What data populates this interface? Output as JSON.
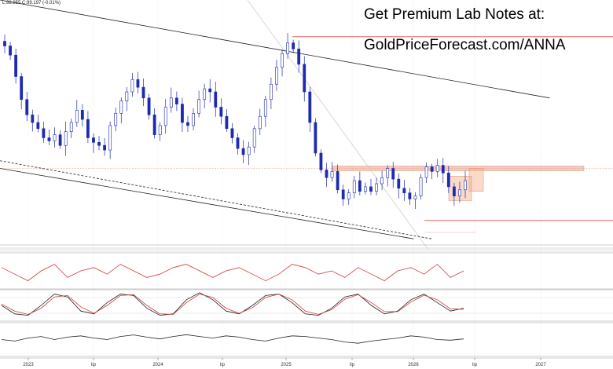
{
  "header": {
    "ohlc_text": "L:98.855  C:99.197  (-0.01%)"
  },
  "promo": {
    "line1": "Get Premium Lab Notes at:",
    "line2": "GoldPriceForecast.com/ANNA"
  },
  "chart_data": {
    "type": "candlestick",
    "x_ticks": [
      "2023",
      "lip",
      "2024",
      "lip",
      "2025",
      "lip",
      "2026",
      "lip",
      "2027"
    ],
    "price": {
      "ylim": [
        95,
        111
      ],
      "weekly_close_approx": [
        108.0,
        107.4,
        106.0,
        104.5,
        103.5,
        103.0,
        102.6,
        102.0,
        101.8,
        102.2,
        101.5,
        102.4,
        103.0,
        103.8,
        103.2,
        102.0,
        101.7,
        101.5,
        101.2,
        102.8,
        103.6,
        104.4,
        105.0,
        105.8,
        105.3,
        104.6,
        103.5,
        102.2,
        102.8,
        104.0,
        104.6,
        104.2,
        103.0,
        102.8,
        103.6,
        104.5,
        105.2,
        105.0,
        104.0,
        103.4,
        102.6,
        102.0,
        101.3,
        100.9,
        101.4,
        102.6,
        103.4,
        104.5,
        105.5,
        106.6,
        107.5,
        108.2,
        107.8,
        106.8,
        105.0,
        103.0,
        101.0,
        99.9,
        99.4,
        99.8,
        98.6,
        98.0,
        98.4,
        99.2,
        98.5,
        98.8,
        98.5,
        99.0,
        99.4,
        100.0,
        99.3,
        98.7,
        98.4,
        98.0,
        98.2,
        99.4,
        100.1,
        99.8,
        100.2,
        99.7,
        98.8,
        98.2,
        98.6,
        99.2
      ],
      "trendlines": [
        {
          "name": "upper-channel",
          "from": [
            0.0,
            111.0
          ],
          "to": [
            0.93,
            104.6
          ]
        },
        {
          "name": "lower-channel-solid",
          "from": [
            0.0,
            100.0
          ],
          "to": [
            0.7,
            95.4
          ]
        },
        {
          "name": "lower-channel-dashed",
          "from": [
            0.0,
            100.5
          ],
          "to": [
            0.73,
            95.4
          ]
        }
      ],
      "horizontal_levels": [
        {
          "value": 108.6,
          "color": "#e04a4a"
        },
        {
          "value": 100.0,
          "color": "#e59a8a"
        },
        {
          "value": 96.6,
          "color": "#e04a4a"
        }
      ],
      "zones": [
        {
          "value_range": [
            99.85,
            100.15
          ],
          "color": "#e9a089"
        },
        {
          "value_range": [
            98.5,
            100.0
          ],
          "color": "#f5b08a"
        },
        {
          "value_range": [
            97.9,
            99.5
          ],
          "color": "#f5b08a"
        }
      ]
    },
    "indicators": [
      {
        "name": "oscillator-red",
        "color": "#d03a3a",
        "values": [
          0.6,
          0.4,
          0.2,
          0.5,
          0.7,
          0.3,
          0.5,
          0.6,
          0.4,
          0.7,
          0.5,
          0.3,
          0.4,
          0.6,
          0.7,
          0.5,
          0.3,
          0.5,
          0.6,
          0.4,
          0.2,
          0.4,
          0.7,
          0.6,
          0.4,
          0.5,
          0.3,
          0.6,
          0.4,
          0.2,
          0.5,
          0.6,
          0.4,
          0.7,
          0.3,
          0.5
        ]
      },
      {
        "name": "stochastic-k",
        "color": "#222222",
        "values": [
          0.5,
          0.2,
          0.15,
          0.5,
          0.9,
          0.8,
          0.3,
          0.2,
          0.6,
          0.9,
          0.85,
          0.4,
          0.15,
          0.2,
          0.7,
          0.95,
          0.7,
          0.3,
          0.2,
          0.5,
          0.85,
          0.9,
          0.6,
          0.2,
          0.15,
          0.4,
          0.8,
          0.9,
          0.5,
          0.2,
          0.3,
          0.7,
          0.9,
          0.6,
          0.3,
          0.4
        ]
      },
      {
        "name": "stochastic-d",
        "color": "#d03a3a",
        "values": [
          0.55,
          0.3,
          0.18,
          0.4,
          0.8,
          0.85,
          0.45,
          0.22,
          0.5,
          0.85,
          0.88,
          0.5,
          0.2,
          0.18,
          0.6,
          0.9,
          0.78,
          0.4,
          0.22,
          0.42,
          0.78,
          0.9,
          0.7,
          0.3,
          0.18,
          0.35,
          0.72,
          0.88,
          0.6,
          0.28,
          0.28,
          0.62,
          0.86,
          0.7,
          0.38,
          0.36
        ]
      },
      {
        "name": "momentum-black",
        "color": "#222222",
        "values": [
          0.5,
          0.45,
          0.55,
          0.6,
          0.5,
          0.58,
          0.62,
          0.55,
          0.5,
          0.6,
          0.65,
          0.58,
          0.52,
          0.6,
          0.66,
          0.6,
          0.55,
          0.62,
          0.58,
          0.5,
          0.45,
          0.55,
          0.62,
          0.6,
          0.55,
          0.5,
          0.42,
          0.38,
          0.45,
          0.5,
          0.55,
          0.62,
          0.58,
          0.5,
          0.48,
          0.52
        ]
      }
    ]
  }
}
